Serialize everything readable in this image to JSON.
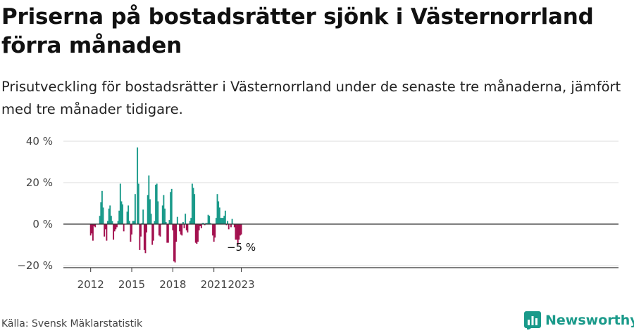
{
  "header": {
    "title": "Priserna på bostadsrätter sjönk i Västernorrland förra månaden",
    "subtitle": "Prisutveckling för bostadsrätter i Västernorrland under de senaste tre månaderna, jämfört med tre månader tidigare."
  },
  "footer": {
    "source": "Källa: Svensk Mäklarstatistik",
    "brand": "Newsworthy"
  },
  "colors": {
    "positive": "#1a9a8a",
    "negative": "#a3104e",
    "grid": "#dddddd",
    "axis": "#333333",
    "brand": "#1a9a8a"
  },
  "chart_data": {
    "type": "bar",
    "x_start": "2012-01",
    "x_end": "2023-05",
    "xticks": [
      {
        "x": "2012-01",
        "label": "2012"
      },
      {
        "x": "2015-01",
        "label": "2015"
      },
      {
        "x": "2018-01",
        "label": "2018"
      },
      {
        "x": "2021-01",
        "label": "2021"
      },
      {
        "x": "2023-01",
        "label": "2023"
      }
    ],
    "yticks": [
      {
        "value": 40,
        "label": "40 %"
      },
      {
        "value": 20,
        "label": "20 %"
      },
      {
        "value": 0,
        "label": "0 %"
      },
      {
        "value": -20,
        "label": "−20 %"
      }
    ],
    "ylim": [
      -21,
      41
    ],
    "annotation": {
      "x": "2023-01",
      "label": "−5 %"
    },
    "values": [
      -5.5,
      -4.5,
      -8,
      -1,
      -1.5,
      0,
      0,
      0,
      4,
      10.5,
      16,
      8,
      -6,
      -2.5,
      -8,
      1.5,
      7.5,
      9,
      4,
      1.5,
      -7.5,
      -3.5,
      -2.5,
      -1.5,
      1.5,
      6.5,
      19.5,
      11,
      9.5,
      -3.5,
      0,
      0,
      6,
      9,
      1.5,
      -8.5,
      -5,
      1.5,
      1.5,
      14.5,
      0,
      37,
      19.5,
      -12.5,
      -6,
      0.5,
      7,
      -12.5,
      -14,
      -4,
      14,
      23.5,
      12,
      5,
      -10,
      -8,
      1.5,
      19,
      19.5,
      11,
      -5.5,
      -6,
      0,
      9,
      14,
      7.5,
      1,
      -9,
      -9,
      2,
      15.5,
      17,
      -3,
      -18,
      -18.5,
      -8.5,
      3.5,
      0,
      -3.5,
      -5,
      -5.5,
      1,
      -2,
      5,
      -3,
      -4,
      0,
      1.5,
      3,
      19.5,
      17.5,
      14.5,
      -9,
      -9.5,
      -8.5,
      -3,
      -1,
      -2,
      0.5,
      0.5,
      -0.5,
      0.5,
      0.5,
      4.5,
      4,
      0.5,
      0,
      -5.5,
      -8.5,
      -6.5,
      3,
      14.5,
      11,
      8,
      3,
      3,
      3,
      4,
      6.5,
      -0.5,
      1.5,
      -2.5,
      0,
      -1.5,
      2.5,
      0,
      -1.5,
      -7.5,
      -7.5,
      -10,
      -7.5,
      -5.5,
      -5
    ]
  }
}
